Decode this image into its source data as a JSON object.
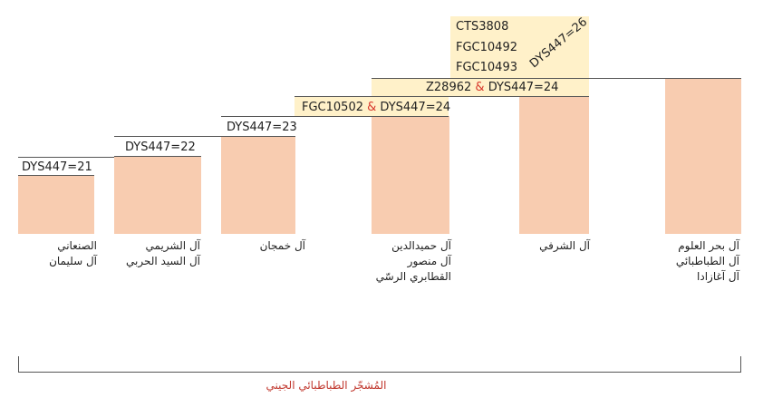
{
  "haplogroup_labels": {
    "g1": "DYS447=21",
    "g2": "DYS447=22",
    "g3": "DYS447=23",
    "g4": {
      "snp": "FGC10502",
      "amp": "&",
      "str": "DYS447=24"
    },
    "g5": {
      "snp": "Z28962",
      "amp": "&",
      "str": "DYS447=24"
    },
    "g6": {
      "snps": [
        "CTS3808",
        "FGC10492",
        "FGC10493"
      ],
      "rotated": "DYS447=26"
    }
  },
  "families": {
    "f1": [
      "الصنعاني",
      "آل سليمان"
    ],
    "f2": [
      "آل الشريمي",
      "آل السيد الحربي"
    ],
    "f3": [
      "آل خمجان"
    ],
    "f4": [
      "آل حميدالدين",
      "آل منصور",
      "القطابري الرسّي"
    ],
    "f5": [
      "آل الشرفي"
    ],
    "f6": [
      "آل بحر العلوم",
      "آل الطباطبائي",
      "آل آغازادا"
    ]
  },
  "footer": "المُشجّر الطباطبائي الجيني",
  "colors": {
    "bar": "#f8ccb0",
    "highlight": "#fff1c9",
    "accent": "#d8382c"
  }
}
